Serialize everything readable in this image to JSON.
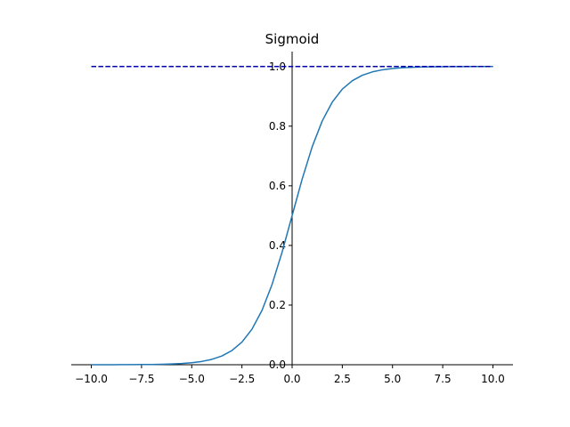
{
  "chart_data": {
    "type": "line",
    "title": "Sigmoid",
    "xlabel": "",
    "ylabel": "",
    "xlim": [
      -11.0,
      11.0
    ],
    "ylim": [
      0.0,
      1.05
    ],
    "x_ticks": [
      -10.0,
      -7.5,
      -5.0,
      -2.5,
      0.0,
      2.5,
      5.0,
      7.5,
      10.0
    ],
    "x_tick_labels": [
      "−10.0",
      "−7.5",
      "−5.0",
      "−2.5",
      "0.0",
      "2.5",
      "5.0",
      "7.5",
      "10.0"
    ],
    "y_ticks": [
      0.0,
      0.2,
      0.4,
      0.6,
      0.8,
      1.0
    ],
    "y_tick_labels": [
      "0.0",
      "0.2",
      "0.4",
      "0.6",
      "0.8",
      "1.0"
    ],
    "spines": "centered (y-axis at x=0, x-axis at y=0)",
    "grid": false,
    "legend": "none",
    "series": [
      {
        "style": "solid",
        "color": "#1f77b4",
        "x": [
          -10,
          -9.5,
          -9,
          -8.5,
          -8,
          -7.5,
          -7,
          -6.5,
          -6,
          -5.5,
          -5,
          -4.5,
          -4,
          -3.5,
          -3,
          -2.5,
          -2,
          -1.5,
          -1,
          -0.5,
          0,
          0.5,
          1,
          1.5,
          2,
          2.5,
          3,
          3.5,
          4,
          4.5,
          5,
          5.5,
          6,
          6.5,
          7,
          7.5,
          8,
          8.5,
          9,
          9.5,
          10
        ],
        "values": [
          4.54e-05,
          7.49e-05,
          0.0001234,
          0.0002034,
          0.0003354,
          0.0005529,
          0.0009111,
          0.0015011,
          0.0024726,
          0.0040701,
          0.0066929,
          0.0109869,
          0.0179862,
          0.0293122,
          0.0474259,
          0.0758582,
          0.1192029,
          0.1824255,
          0.2689414,
          0.3775407,
          0.5,
          0.6224593,
          0.7310586,
          0.8175745,
          0.8807971,
          0.9241418,
          0.9525741,
          0.9706878,
          0.9820138,
          0.9890131,
          0.9933071,
          0.9959299,
          0.9975274,
          0.9984989,
          0.9990889,
          0.9994471,
          0.9996646,
          0.9997966,
          0.9998766,
          0.9999251,
          0.9999546
        ]
      },
      {
        "style": "dashed",
        "color": "#0000aa",
        "x": [
          -10,
          10
        ],
        "values": [
          1.0,
          1.0
        ]
      }
    ]
  }
}
